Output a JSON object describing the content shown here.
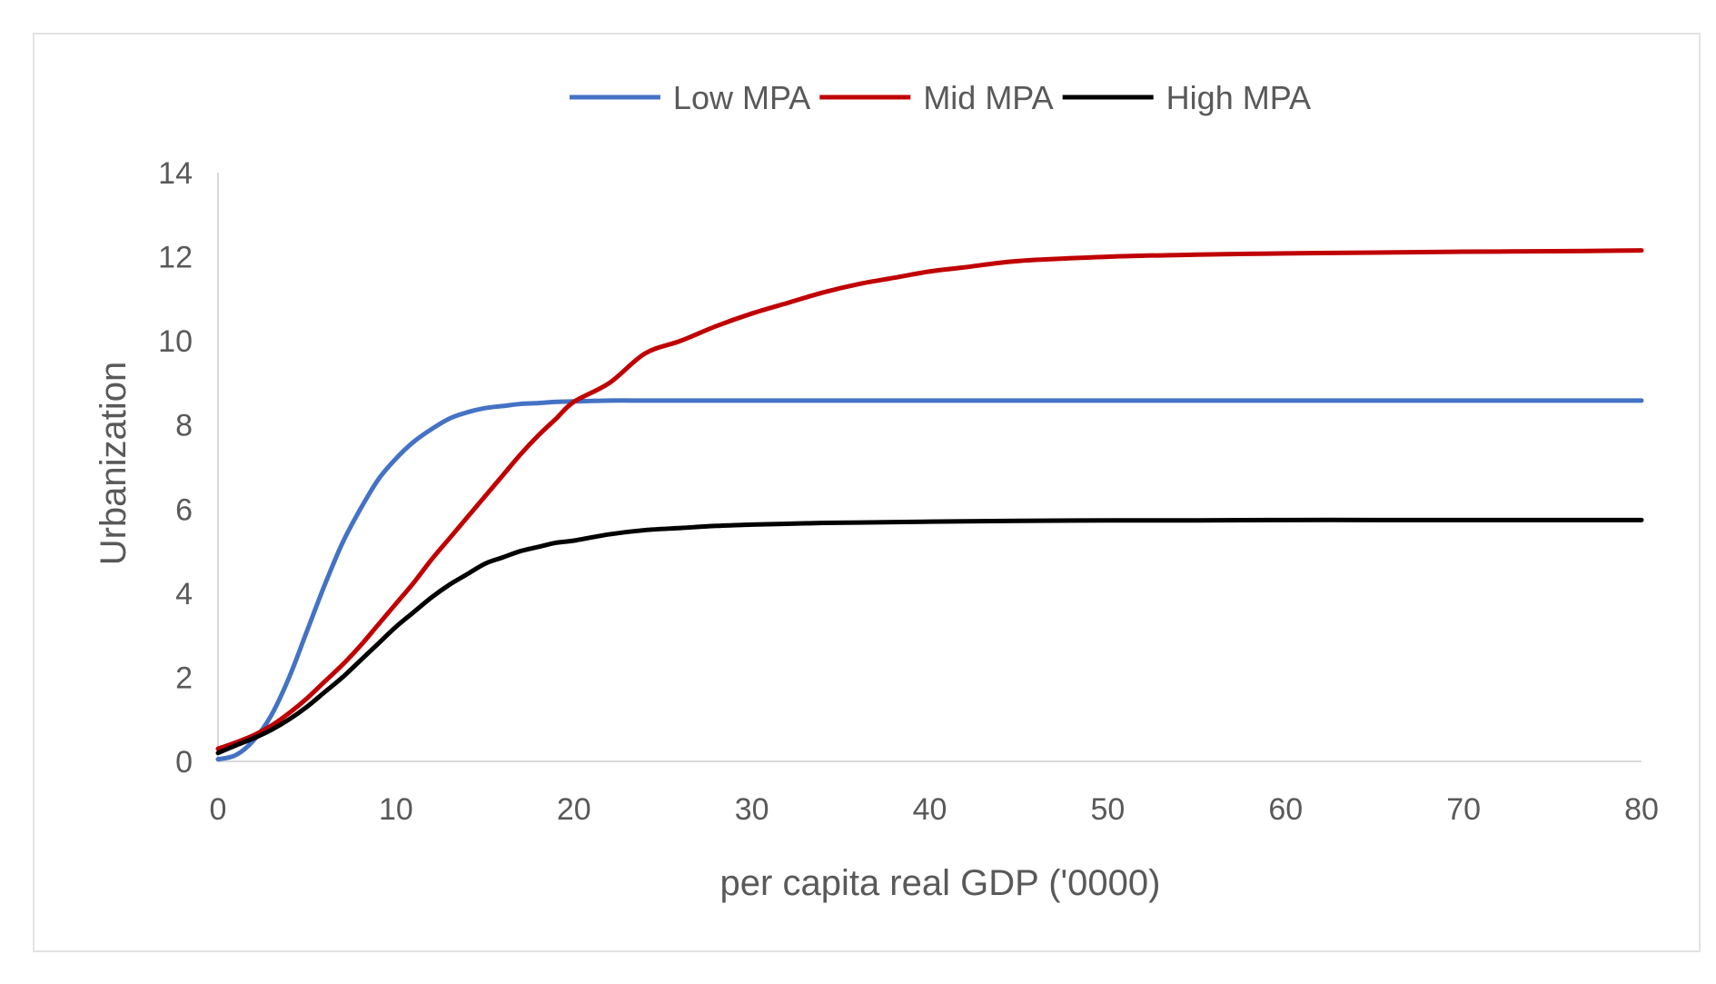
{
  "chart_data": {
    "type": "line",
    "title": "",
    "xlabel": "per capita real GDP ('0000)",
    "ylabel": "Urbanization",
    "xlim": [
      0,
      80
    ],
    "ylim": [
      0,
      14
    ],
    "xticks": [
      0,
      10,
      20,
      30,
      40,
      50,
      60,
      70,
      80
    ],
    "yticks": [
      0,
      2,
      4,
      6,
      8,
      10,
      12,
      14
    ],
    "grid": false,
    "legend_position": "top-center",
    "x": [
      0,
      1,
      2,
      3,
      4,
      5,
      6,
      7,
      8,
      9,
      10,
      11,
      12,
      13,
      14,
      15,
      16,
      17,
      18,
      19,
      20,
      22,
      24,
      26,
      28,
      30,
      32,
      34,
      36,
      38,
      40,
      42,
      45,
      50,
      55,
      60,
      65,
      70,
      75,
      80
    ],
    "series": [
      {
        "name": "Low MPA",
        "color": "#4472c4",
        "values": [
          0.05,
          0.15,
          0.5,
          1.1,
          2.0,
          3.1,
          4.2,
          5.2,
          6.0,
          6.7,
          7.2,
          7.6,
          7.9,
          8.15,
          8.3,
          8.4,
          8.45,
          8.5,
          8.52,
          8.55,
          8.56,
          8.58,
          8.58,
          8.58,
          8.58,
          8.58,
          8.58,
          8.58,
          8.58,
          8.58,
          8.58,
          8.58,
          8.58,
          8.58,
          8.58,
          8.58,
          8.58,
          8.58,
          8.58,
          8.58
        ]
      },
      {
        "name": "Mid MPA",
        "color": "#c00000",
        "values": [
          0.3,
          0.45,
          0.62,
          0.85,
          1.15,
          1.5,
          1.9,
          2.3,
          2.75,
          3.25,
          3.75,
          4.25,
          4.8,
          5.3,
          5.8,
          6.3,
          6.8,
          7.3,
          7.75,
          8.15,
          8.55,
          9.0,
          9.7,
          10.0,
          10.35,
          10.65,
          10.9,
          11.15,
          11.35,
          11.5,
          11.65,
          11.75,
          11.9,
          12.0,
          12.05,
          12.08,
          12.1,
          12.12,
          12.13,
          12.15
        ]
      },
      {
        "name": "High MPA",
        "color": "#000000",
        "values": [
          0.2,
          0.38,
          0.55,
          0.75,
          1.0,
          1.3,
          1.65,
          2.0,
          2.4,
          2.8,
          3.2,
          3.55,
          3.9,
          4.2,
          4.45,
          4.7,
          4.85,
          5.0,
          5.1,
          5.2,
          5.25,
          5.4,
          5.5,
          5.55,
          5.6,
          5.63,
          5.65,
          5.67,
          5.68,
          5.69,
          5.7,
          5.71,
          5.72,
          5.73,
          5.73,
          5.74,
          5.74,
          5.74,
          5.74,
          5.74
        ]
      }
    ]
  }
}
